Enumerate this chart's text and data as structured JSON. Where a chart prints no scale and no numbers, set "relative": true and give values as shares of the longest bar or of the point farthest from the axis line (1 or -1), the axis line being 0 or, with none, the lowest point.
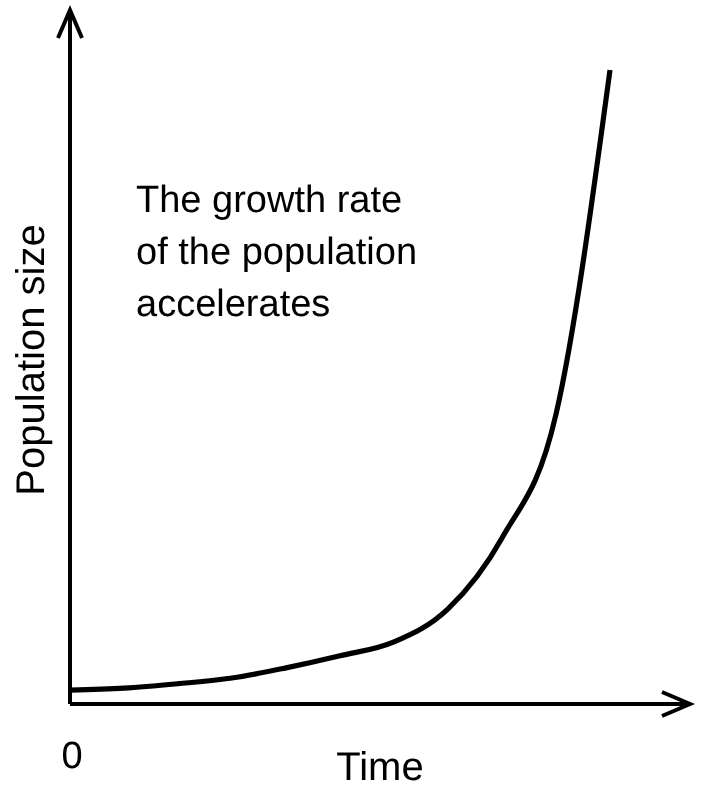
{
  "chart_data": {
    "type": "line",
    "relative": true,
    "xlabel": "Time",
    "ylabel": "Population size",
    "categories": [
      null,
      null,
      null,
      null,
      null,
      null,
      null,
      null,
      null,
      null,
      null
    ],
    "series": [
      {
        "color": "#000000",
        "values": [
          0.022,
          0.025,
          0.032,
          0.041,
          0.057,
          0.076,
          0.098,
          0.15,
          0.262,
          0.457,
          1
        ]
      }
    ],
    "annotations": [
      {
        "text": "The growth rate of the population accelerates"
      },
      {
        "text": "0"
      }
    ],
    "marker": "none",
    "line_style": "solid"
  }
}
